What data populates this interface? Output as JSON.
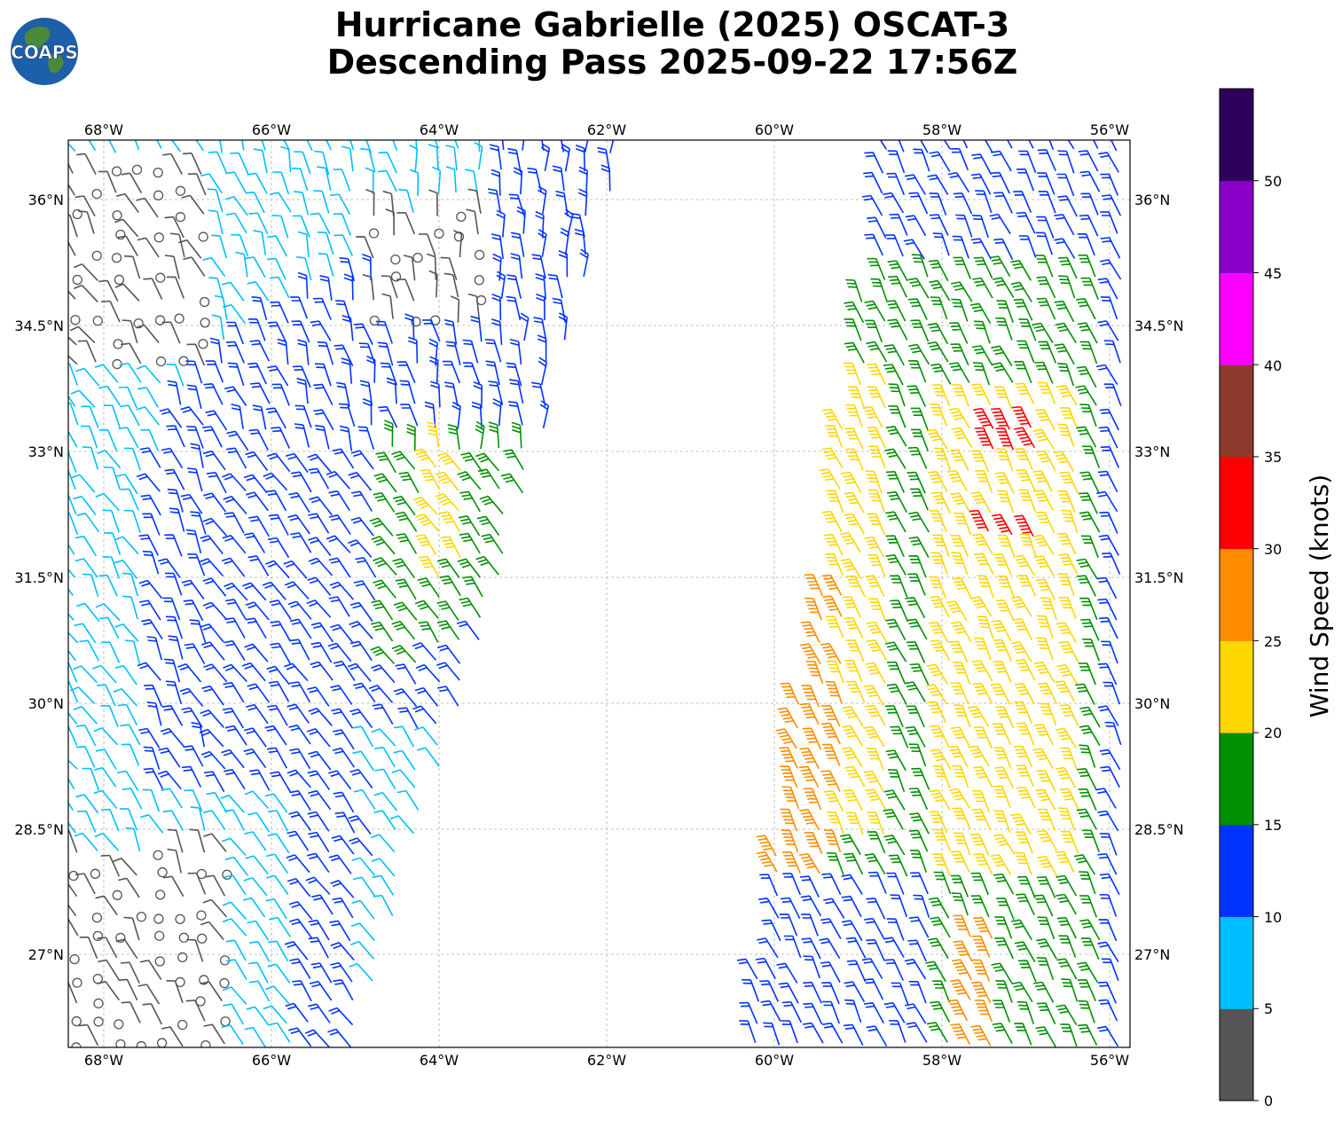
{
  "header": {
    "logo_text": "COAPS",
    "title_line1": "Hurricane Gabrielle (2025) OSCAT-3",
    "title_line2": "Descending Pass 2025-09-22 17:56Z"
  },
  "map": {
    "lon_labels": [
      "68°W",
      "66°W",
      "64°W",
      "62°W",
      "60°W",
      "58°W",
      "56°W"
    ],
    "lat_labels": [
      "36°N",
      "34.5°N",
      "33°N",
      "31.5°N",
      "30°N",
      "28.5°N",
      "27°N"
    ],
    "gridlines": "dashed"
  },
  "colorbar": {
    "label": "Wind Speed (knots)",
    "ticks": [
      "0",
      "5",
      "10",
      "15",
      "20",
      "25",
      "30",
      "35",
      "40",
      "45",
      "50"
    ],
    "bins": [
      {
        "range": "0-5",
        "color": "#555555"
      },
      {
        "range": "5-10",
        "color": "#00bfff"
      },
      {
        "range": "10-15",
        "color": "#0033ff"
      },
      {
        "range": "15-20",
        "color": "#009000"
      },
      {
        "range": "20-25",
        "color": "#ffd700"
      },
      {
        "range": "25-30",
        "color": "#ff8c00"
      },
      {
        "range": "30-35",
        "color": "#ff0000"
      },
      {
        "range": "35-40",
        "color": "#8b3a2b"
      },
      {
        "range": "40-45",
        "color": "#ff00ff"
      },
      {
        "range": "45-50",
        "color": "#8b00c8"
      },
      {
        "range": "50+",
        "color": "#2e005c"
      }
    ]
  }
}
